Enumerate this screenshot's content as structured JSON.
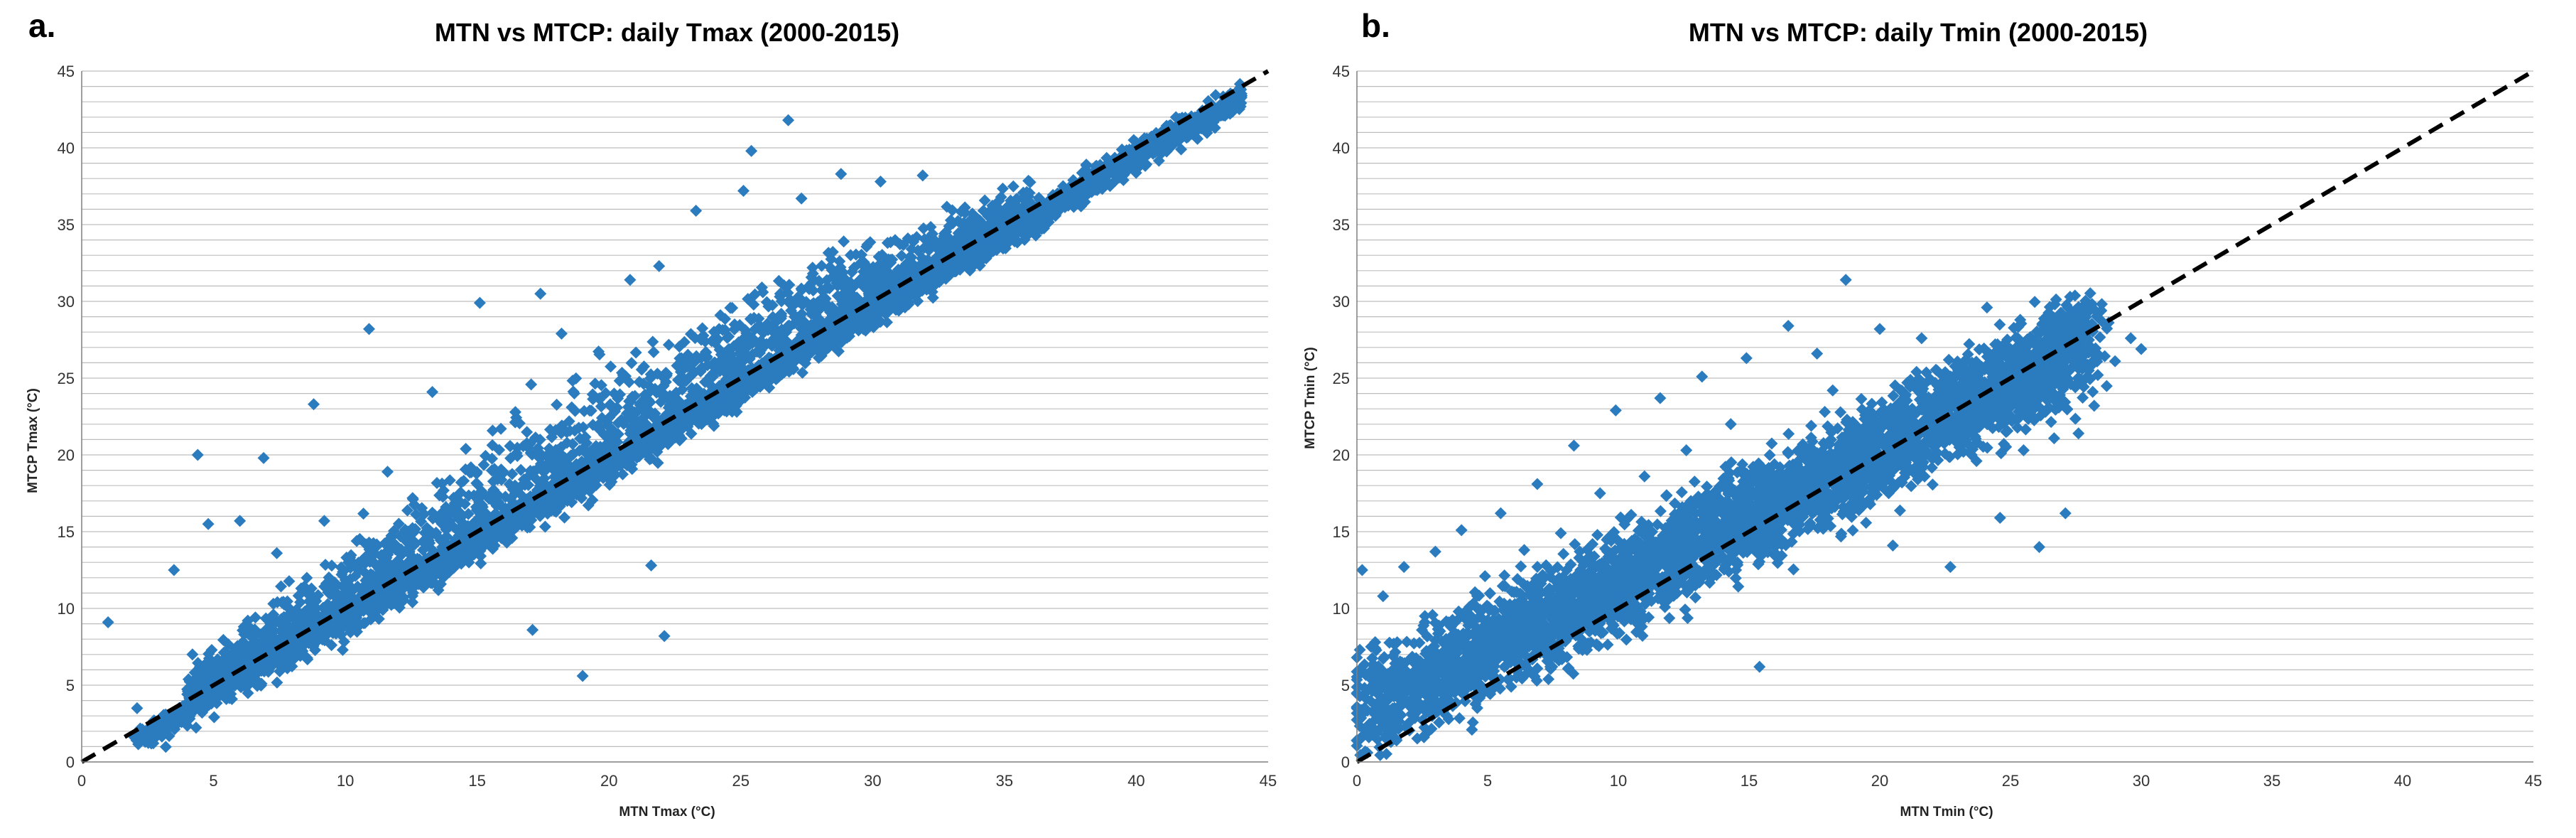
{
  "colors": {
    "marker": "#2b7bbf",
    "reference_line": "#000000",
    "grid": "#bdbdbd"
  },
  "chart_data": [
    {
      "type": "scatter",
      "panel_label": "a.",
      "title": "MTN vs MTCP: daily Tmax (2000-2015)",
      "xlabel": "MTN Tmax (°C)",
      "ylabel": "MTCP Tmax  (°C)",
      "xlim": [
        0,
        45
      ],
      "ylim": [
        0,
        45
      ],
      "xticks": [
        0,
        5,
        10,
        15,
        20,
        25,
        30,
        35,
        40,
        45
      ],
      "yticks": [
        0,
        5,
        10,
        15,
        20,
        25,
        30,
        35,
        40,
        45
      ],
      "minor_grid_step": 1,
      "marker": "diamond",
      "reference_line": {
        "style": "dashed",
        "from": [
          0,
          0
        ],
        "to": [
          45,
          45
        ]
      },
      "series": [
        {
          "name": "daily Tmax",
          "x": [
            1.0,
            2.1,
            3.0,
            3.5,
            4.2,
            4.4,
            4.8,
            5.0,
            5.5,
            6.0,
            6.3,
            6.9,
            7.4,
            7.8,
            8.4,
            8.8,
            9.2,
            9.9,
            10.5,
            10.9,
            11.6,
            12.4,
            13.3,
            14.1,
            15.1,
            15.9,
            16.7,
            17.4,
            17.1,
            18.2,
            19.0,
            19.9,
            20.8,
            21.6,
            22.1,
            21.9,
            22.4,
            23.3,
            23.7,
            24.2,
            25.1,
            25.4,
            25.8,
            26.4,
            26.8,
            27.3,
            27.7,
            28.8,
            29.3,
            30.3,
            30.7,
            31.9,
            32.7,
            33.6,
            34.2,
            35.1,
            35.6,
            36.2,
            37.4,
            38.7,
            39.6,
            40.4,
            41.7,
            42.5,
            43.3,
            43.9
          ],
          "y": [
            9.1,
            3.5,
            2.4,
            12.5,
            7.0,
            20.0,
            15.5,
            4.0,
            5.2,
            15.7,
            9.2,
            19.8,
            13.6,
            6.1,
            11.2,
            23.3,
            15.7,
            7.3,
            12.7,
            28.2,
            18.9,
            11.4,
            24.1,
            14.3,
            29.9,
            21.7,
            15.4,
            30.5,
            8.6,
            27.9,
            5.6,
            18.8,
            31.4,
            12.8,
            8.2,
            32.3,
            23.8,
            35.9,
            26.3,
            23.1,
            37.2,
            39.8,
            30.9,
            25.2,
            41.8,
            36.7,
            28.1,
            38.3,
            32.2,
            37.8,
            29.7,
            38.2,
            33.0,
            32.2,
            35.9,
            34.4,
            34.6,
            34.5,
            36.4,
            37.7,
            38.7,
            40.6,
            39.9,
            41.9,
            42.7,
            42.8
          ]
        }
      ]
    },
    {
      "type": "scatter",
      "panel_label": "b.",
      "title": "MTN vs MTCP: daily Tmin (2000-2015)",
      "xlabel": "MTN Tmin (°C)",
      "ylabel": "MTCP Tmin (°C)",
      "xlim": [
        0,
        45
      ],
      "ylim": [
        0,
        45
      ],
      "xticks": [
        0,
        5,
        10,
        15,
        20,
        25,
        30,
        35,
        40,
        45
      ],
      "yticks": [
        0,
        5,
        10,
        15,
        20,
        25,
        30,
        35,
        40,
        45
      ],
      "minor_grid_step": 1,
      "marker": "diamond",
      "reference_line": {
        "style": "dashed",
        "from": [
          0,
          0
        ],
        "to": [
          45,
          45
        ]
      },
      "series": [
        {
          "name": "daily Tmin",
          "x": [
            0.1,
            0.2,
            0.4,
            0.7,
            1.0,
            1.3,
            1.8,
            2.2,
            2.6,
            3.0,
            3.3,
            3.6,
            4.0,
            4.4,
            4.9,
            5.5,
            5.9,
            6.4,
            6.9,
            7.4,
            7.8,
            8.3,
            8.8,
            9.3,
            9.9,
            10.5,
            11.0,
            11.6,
            12.1,
            12.6,
            13.2,
            13.8,
            14.3,
            14.9,
            15.4,
            16.0,
            16.5,
            17.1,
            17.6,
            18.2,
            18.7,
            19.2,
            19.6,
            20.0,
            20.5,
            21.0,
            21.6,
            22.1,
            22.7,
            23.2,
            23.7,
            24.1,
            24.6,
            25.0,
            25.5,
            26.1,
            26.6,
            27.1,
            27.6,
            28.2,
            29.0,
            29.6,
            30.0
          ],
          "y": [
            3.1,
            12.5,
            0.6,
            7.8,
            10.8,
            1.3,
            12.7,
            5.1,
            9.5,
            13.7,
            3.4,
            8.8,
            15.1,
            2.1,
            12.1,
            16.2,
            4.9,
            13.8,
            18.1,
            6.2,
            14.9,
            20.6,
            7.3,
            17.5,
            22.9,
            10.6,
            18.6,
            23.7,
            13.0,
            20.3,
            25.1,
            15.1,
            22.0,
            26.3,
            6.2,
            17.0,
            28.4,
            20.1,
            26.6,
            24.2,
            31.4,
            16.4,
            22.9,
            28.2,
            14.1,
            19.5,
            27.6,
            20.9,
            12.7,
            24.7,
            19.6,
            29.6,
            15.9,
            22.5,
            20.3,
            14.0,
            24.1,
            16.2,
            21.4,
            23.2,
            26.1,
            27.6,
            26.9
          ]
        }
      ]
    }
  ]
}
